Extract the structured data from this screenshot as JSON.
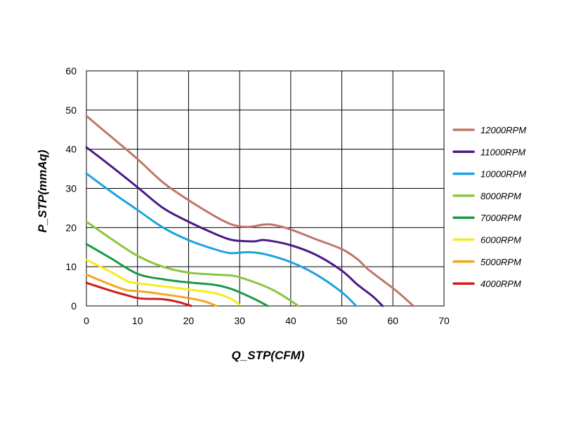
{
  "chart_data": {
    "type": "line",
    "title": "",
    "xlabel": "Q_STP(CFM)",
    "ylabel": "P_STP(mmAq)",
    "xlim": [
      0,
      70
    ],
    "ylim": [
      0,
      60
    ],
    "xticks": [
      0,
      10,
      20,
      30,
      40,
      50,
      60,
      70
    ],
    "yticks": [
      0,
      10,
      20,
      30,
      40,
      50,
      60
    ],
    "grid": true,
    "legend_position": "right",
    "series": [
      {
        "name": "12000RPM",
        "color": "#c0756a",
        "points": [
          [
            0,
            48.5
          ],
          [
            5,
            43
          ],
          [
            10,
            37.5
          ],
          [
            15,
            31.5
          ],
          [
            20,
            27
          ],
          [
            25,
            23
          ],
          [
            28,
            21
          ],
          [
            30,
            20.3
          ],
          [
            32,
            20.2
          ],
          [
            35,
            20.8
          ],
          [
            37,
            20.6
          ],
          [
            40,
            19.5
          ],
          [
            45,
            17
          ],
          [
            50,
            14.5
          ],
          [
            53,
            12
          ],
          [
            55,
            9.5
          ],
          [
            58,
            6.5
          ],
          [
            61,
            3.5
          ],
          [
            64,
            0
          ]
        ]
      },
      {
        "name": "11000RPM",
        "color": "#4a1a86",
        "points": [
          [
            0,
            40.5
          ],
          [
            5,
            35.5
          ],
          [
            10,
            30.3
          ],
          [
            15,
            25
          ],
          [
            20,
            21.5
          ],
          [
            25,
            18.5
          ],
          [
            28,
            17
          ],
          [
            30,
            16.6
          ],
          [
            33,
            16.5
          ],
          [
            35,
            16.8
          ],
          [
            40,
            15.5
          ],
          [
            45,
            13
          ],
          [
            50,
            9
          ],
          [
            53,
            5.5
          ],
          [
            56,
            2.5
          ],
          [
            58,
            0
          ]
        ]
      },
      {
        "name": "10000RPM",
        "color": "#1aa3e0",
        "points": [
          [
            0,
            33.8
          ],
          [
            5,
            29
          ],
          [
            10,
            24.5
          ],
          [
            15,
            20
          ],
          [
            20,
            16.8
          ],
          [
            25,
            14.5
          ],
          [
            28,
            13.5
          ],
          [
            30,
            13.6
          ],
          [
            32,
            13.7
          ],
          [
            35,
            13.2
          ],
          [
            40,
            11.2
          ],
          [
            45,
            8
          ],
          [
            50,
            3.5
          ],
          [
            52.8,
            0
          ]
        ]
      },
      {
        "name": "8000RPM",
        "color": "#8cc63e",
        "points": [
          [
            0,
            21.5
          ],
          [
            5,
            17
          ],
          [
            10,
            12.8
          ],
          [
            15,
            10
          ],
          [
            20,
            8.5
          ],
          [
            25,
            8
          ],
          [
            28,
            7.8
          ],
          [
            30,
            7.3
          ],
          [
            35,
            5
          ],
          [
            38,
            3
          ],
          [
            41.5,
            0
          ]
        ]
      },
      {
        "name": "7000RPM",
        "color": "#1a9a46",
        "points": [
          [
            0,
            15.8
          ],
          [
            5,
            12
          ],
          [
            10,
            8.2
          ],
          [
            15,
            6.8
          ],
          [
            20,
            6
          ],
          [
            25,
            5.4
          ],
          [
            28,
            4.5
          ],
          [
            30,
            3.5
          ],
          [
            33,
            1.7
          ],
          [
            35.5,
            0
          ]
        ]
      },
      {
        "name": "6000RPM",
        "color": "#f5ee1c",
        "points": [
          [
            0,
            11.8
          ],
          [
            5,
            8.5
          ],
          [
            8,
            6.3
          ],
          [
            10,
            5.8
          ],
          [
            15,
            5
          ],
          [
            20,
            4.2
          ],
          [
            25,
            3.3
          ],
          [
            28,
            2
          ],
          [
            30,
            0.3
          ]
        ]
      },
      {
        "name": "5000RPM",
        "color": "#f2a81d",
        "points": [
          [
            0,
            8
          ],
          [
            5,
            5.3
          ],
          [
            8,
            4
          ],
          [
            10,
            3.8
          ],
          [
            15,
            3
          ],
          [
            20,
            2
          ],
          [
            23,
            1.2
          ],
          [
            25.5,
            0
          ]
        ]
      },
      {
        "name": "4000RPM",
        "color": "#d01c1c",
        "points": [
          [
            0,
            5.9
          ],
          [
            5,
            3.8
          ],
          [
            8,
            2.7
          ],
          [
            10,
            2
          ],
          [
            12,
            1.8
          ],
          [
            15,
            1.7
          ],
          [
            18,
            1
          ],
          [
            20.5,
            0
          ]
        ]
      }
    ]
  }
}
